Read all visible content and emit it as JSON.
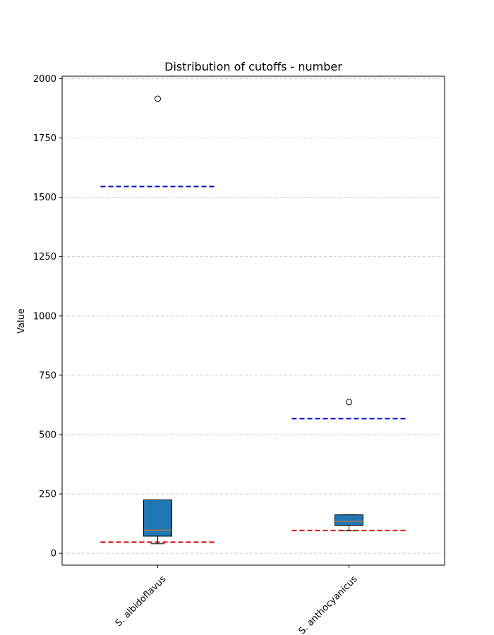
{
  "chart_data": {
    "type": "box",
    "title": "Distribution of cutoffs - number",
    "xlabel": "",
    "ylabel": "Value",
    "ylim": [
      -50,
      2010
    ],
    "yticks": [
      0,
      250,
      500,
      750,
      1000,
      1250,
      1500,
      1750,
      2000
    ],
    "grid": "horizontal-dashed",
    "categories": [
      "S. albidoflavus",
      "S. anthocyanicus"
    ],
    "boxes": [
      {
        "category": "S. albidoflavus",
        "whisker_low": 40,
        "q1": 72,
        "median": 98,
        "q3": 225,
        "whisker_high": 225,
        "outliers": [
          1915
        ],
        "upper_threshold": 1545,
        "lower_threshold": 47
      },
      {
        "category": "S. anthocyanicus",
        "whisker_low": 95,
        "q1": 118,
        "median": 135,
        "q3": 162,
        "whisker_high": 162,
        "outliers": [
          637
        ],
        "upper_threshold": 567,
        "lower_threshold": 96
      }
    ],
    "colors": {
      "box_fill": "#1f77b4",
      "median": "#ff7f0e",
      "upper_threshold": "#0000cc",
      "lower_threshold": "#dd0000",
      "grid": "#cccccc"
    }
  }
}
